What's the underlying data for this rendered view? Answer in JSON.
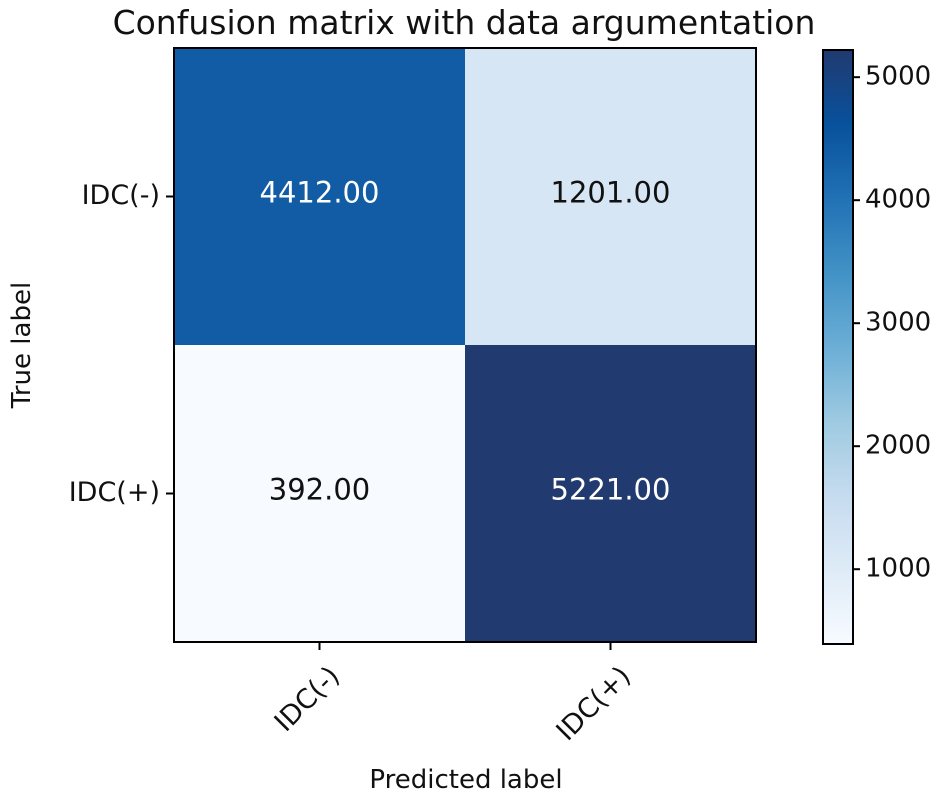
{
  "chart_data": {
    "type": "heatmap",
    "title": "Confusion matrix with data argumentation",
    "xlabel": "Predicted label",
    "ylabel": "True label",
    "x_categories": [
      "IDC(-)",
      "IDC(+)"
    ],
    "y_categories": [
      "IDC(-)",
      "IDC(+)"
    ],
    "values": [
      [
        4412,
        1201
      ],
      [
        392,
        5221
      ]
    ],
    "value_labels": [
      [
        "4412.00",
        "1201.00"
      ],
      [
        "392.00",
        "5221.00"
      ]
    ],
    "colormap": "Blues",
    "colorbar": {
      "range": [
        392,
        5221
      ],
      "ticks": [
        1000,
        2000,
        3000,
        4000,
        5000
      ],
      "tick_labels": [
        "1000",
        "2000",
        "3000",
        "4000",
        "5000"
      ]
    }
  }
}
